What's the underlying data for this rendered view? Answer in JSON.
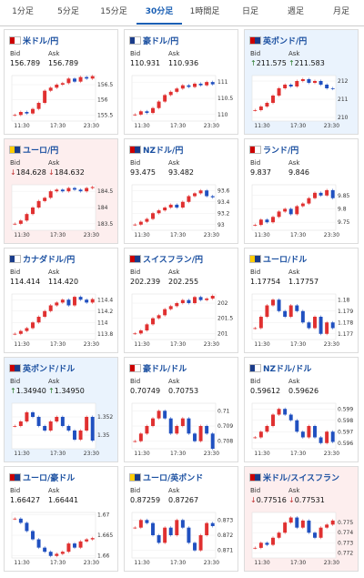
{
  "tabs": [
    "1分足",
    "5分足",
    "15分足",
    "30分足",
    "1時間足",
    "日足",
    "週足",
    "月足"
  ],
  "active_tab": 3,
  "labels": {
    "bid": "Bid",
    "ask": "Ask"
  },
  "x_labels": [
    "11:30",
    "17:30",
    "23:30"
  ],
  "up_color": "#e03030",
  "down_color": "#2050c0",
  "cards": [
    {
      "name": "米ドル/円",
      "bid": "156.789",
      "ask": "156.789",
      "ylim": [
        155.3,
        156.8
      ],
      "yticks": [
        156.5,
        156,
        155.5
      ],
      "closes": [
        155.5,
        155.6,
        155.55,
        155.7,
        155.9,
        156.3,
        156.4,
        156.5,
        156.55,
        156.7,
        156.6,
        156.75,
        156.7,
        156.78
      ]
    },
    {
      "name": "豪ドル/円",
      "bid": "110.931",
      "ask": "110.936",
      "ylim": [
        109.8,
        111.2
      ],
      "yticks": [
        111,
        110.5,
        110
      ],
      "closes": [
        110.0,
        110.1,
        110.05,
        110.2,
        110.4,
        110.6,
        110.7,
        110.8,
        110.9,
        110.85,
        110.95,
        110.9,
        111.0,
        110.93
      ]
    },
    {
      "name": "英ポンド/円",
      "bid_arrow": "↑",
      "ask_arrow": "↑",
      "trend": "up",
      "bid": "211.575",
      "ask": "211.583",
      "highlight": "#eaf3fd",
      "ylim": [
        209.8,
        212.3
      ],
      "yticks": [
        212,
        211,
        210
      ],
      "closes": [
        210.4,
        210.6,
        210.8,
        211.2,
        211.6,
        211.8,
        211.7,
        212.0,
        212.1,
        211.9,
        212.0,
        211.8,
        211.6,
        211.57
      ]
    },
    {
      "name": "ユーロ/円",
      "bid_arrow": "↓",
      "ask_arrow": "↓",
      "trend": "down",
      "bid": "184.628",
      "ask": "184.632",
      "highlight": "#fdeeee",
      "ylim": [
        183.3,
        184.7
      ],
      "yticks": [
        184.5,
        184,
        183.5
      ],
      "closes": [
        183.5,
        183.6,
        183.8,
        184.0,
        184.2,
        184.3,
        184.5,
        184.55,
        184.5,
        184.6,
        184.55,
        184.5,
        184.6,
        184.63
      ]
    },
    {
      "name": "NZドル/円",
      "bid": "93.475",
      "ask": "93.482",
      "ylim": [
        92.9,
        93.7
      ],
      "yticks": [
        93.6,
        93.4,
        93.2,
        93
      ],
      "closes": [
        93.0,
        93.05,
        93.1,
        93.2,
        93.25,
        93.3,
        93.35,
        93.3,
        93.4,
        93.5,
        93.55,
        93.6,
        93.5,
        93.48
      ]
    },
    {
      "name": "ランド/円",
      "bid": "9.837",
      "ask": "9.846",
      "ylim": [
        9.72,
        9.89
      ],
      "yticks": [
        9.85,
        9.8,
        9.75
      ],
      "closes": [
        9.74,
        9.76,
        9.75,
        9.77,
        9.79,
        9.8,
        9.78,
        9.81,
        9.82,
        9.84,
        9.86,
        9.85,
        9.87,
        9.84
      ]
    },
    {
      "name": "カナダドル/円",
      "bid": "114.414",
      "ask": "114.420",
      "ylim": [
        113.7,
        114.5
      ],
      "yticks": [
        114.4,
        114.2,
        114,
        113.8
      ],
      "closes": [
        113.8,
        113.85,
        113.9,
        114.0,
        114.1,
        114.2,
        114.3,
        114.35,
        114.4,
        114.3,
        114.45,
        114.4,
        114.35,
        114.41
      ]
    },
    {
      "name": "スイスフラン/円",
      "bid": "202.239",
      "ask": "202.255",
      "ylim": [
        200.8,
        202.3
      ],
      "yticks": [
        202,
        201.5,
        201
      ],
      "closes": [
        201.0,
        201.1,
        201.3,
        201.5,
        201.6,
        201.8,
        201.9,
        202.0,
        202.1,
        202.0,
        202.2,
        202.1,
        202.15,
        202.24
      ]
    },
    {
      "name": "ユーロ/ドル",
      "bid": "1.17754",
      "ask": "1.17757",
      "ylim": [
        1.1765,
        1.1805
      ],
      "yticks": [
        1.18,
        1.179,
        1.178,
        1.177
      ],
      "closes": [
        1.1775,
        1.1785,
        1.1795,
        1.18,
        1.179,
        1.1785,
        1.1795,
        1.179,
        1.178,
        1.1775,
        1.1785,
        1.177,
        1.178,
        1.1775
      ]
    },
    {
      "name": "英ポンド/ドル",
      "bid_arrow": "↑",
      "ask_arrow": "↑",
      "trend": "up",
      "bid": "1.34940",
      "ask": "1.34950",
      "highlight": "#eaf3fd",
      "ylim": [
        1.3485,
        1.3535
      ],
      "yticks": [
        1.352,
        1.35
      ],
      "closes": [
        1.351,
        1.3515,
        1.3525,
        1.352,
        1.351,
        1.3505,
        1.3515,
        1.352,
        1.351,
        1.3505,
        1.3495,
        1.3505,
        1.352,
        1.3494
      ]
    },
    {
      "name": "豪ドル/ドル",
      "bid": "0.70749",
      "ask": "0.70753",
      "ylim": [
        0.7075,
        0.7105
      ],
      "yticks": [
        0.71,
        0.709,
        0.708
      ],
      "closes": [
        0.708,
        0.7085,
        0.709,
        0.7095,
        0.71,
        0.7095,
        0.7085,
        0.709,
        0.7095,
        0.7085,
        0.708,
        0.709,
        0.7085,
        0.7075
      ]
    },
    {
      "name": "NZドル/ドル",
      "bid": "0.59612",
      "ask": "0.59626",
      "ylim": [
        0.5955,
        0.5995
      ],
      "yticks": [
        0.599,
        0.598,
        0.597,
        0.596
      ],
      "closes": [
        0.5965,
        0.597,
        0.5975,
        0.5985,
        0.599,
        0.5985,
        0.598,
        0.597,
        0.5965,
        0.5975,
        0.5965,
        0.596,
        0.597,
        0.5961
      ]
    },
    {
      "name": "ユーロ/豪ドル",
      "bid": "1.66427",
      "ask": "1.66441",
      "ylim": [
        1.6595,
        1.6705
      ],
      "yticks": [
        1.67,
        1.665,
        1.66
      ],
      "closes": [
        1.669,
        1.668,
        1.666,
        1.664,
        1.662,
        1.661,
        1.66,
        1.6605,
        1.661,
        1.663,
        1.662,
        1.6635,
        1.664,
        1.6643
      ]
    },
    {
      "name": "ユーロ/英ポンド",
      "bid": "0.87259",
      "ask": "0.87267",
      "ylim": [
        0.8705,
        0.8735
      ],
      "yticks": [
        0.873,
        0.872,
        0.871
      ],
      "closes": [
        0.8725,
        0.873,
        0.8728,
        0.872,
        0.8715,
        0.8725,
        0.872,
        0.873,
        0.8725,
        0.8715,
        0.871,
        0.872,
        0.8728,
        0.8726
      ]
    },
    {
      "name": "米ドル/スイスフラン",
      "bid_arrow": "↓",
      "ask_arrow": "↓",
      "trend": "down",
      "bid": "0.77516",
      "ask": "0.77531",
      "highlight": "#fdeeee",
      "ylim": [
        0.7715,
        0.776
      ],
      "yticks": [
        0.775,
        0.774,
        0.773,
        0.772
      ],
      "closes": [
        0.7725,
        0.773,
        0.7728,
        0.7735,
        0.774,
        0.775,
        0.7755,
        0.7745,
        0.7752,
        0.774,
        0.7735,
        0.7745,
        0.7748,
        0.7752
      ]
    }
  ]
}
